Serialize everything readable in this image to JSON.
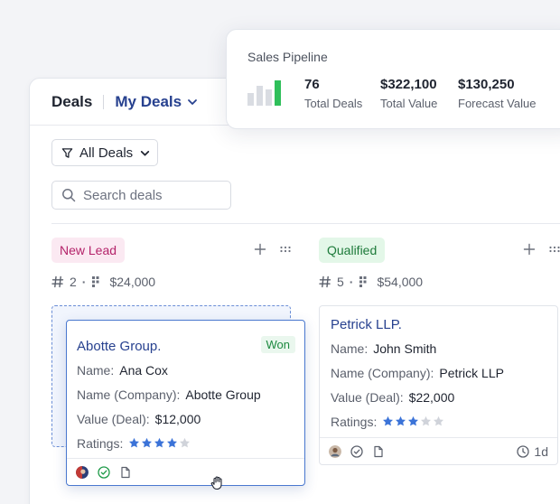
{
  "header": {
    "title": "Deals",
    "view": "My Deals"
  },
  "filter": {
    "label": "All Deals"
  },
  "search": {
    "placeholder": "Search deals"
  },
  "columns": [
    {
      "label": "New Lead",
      "count": "2",
      "amount": "$24,000"
    },
    {
      "label": "Qualified",
      "count": "5",
      "amount": "$54,000"
    }
  ],
  "cards": [
    {
      "name": "Abotte Group.",
      "badge": "Won",
      "fields": {
        "name_label": "Name:",
        "name_value": "Ana Cox",
        "company_label": "Name (Company):",
        "company_value": "Abotte Group",
        "value_label": "Value (Deal):",
        "value_value": "$12,000",
        "ratings_label": "Ratings:"
      },
      "rating": 4
    },
    {
      "name": "Petrick LLP.",
      "fields": {
        "name_label": "Name:",
        "name_value": "John Smith",
        "company_label": "Name (Company):",
        "company_value": "Petrick LLP",
        "value_label": "Value (Deal):",
        "value_value": "$22,000",
        "ratings_label": "Ratings:"
      },
      "rating": 3,
      "age": "1d"
    }
  ],
  "pipeline": {
    "title": "Sales Pipeline",
    "metrics": [
      {
        "value": "76",
        "label": "Total Deals"
      },
      {
        "value": "$322,100",
        "label": "Total Value"
      },
      {
        "value": "$130,250",
        "label": "Forecast Value"
      }
    ]
  },
  "colors": {
    "accent": "#27418f",
    "star": "#3b73d8",
    "star_empty": "#d0d3da",
    "pipeline_bar": "#2fbf5a"
  },
  "icons": [
    "chevron-down-icon",
    "filter-icon",
    "search-icon",
    "plus-icon",
    "more-icon",
    "hash-icon",
    "kanban-icon",
    "star-icon",
    "check-circle-icon",
    "document-icon",
    "clock-icon",
    "grab-cursor-icon"
  ]
}
